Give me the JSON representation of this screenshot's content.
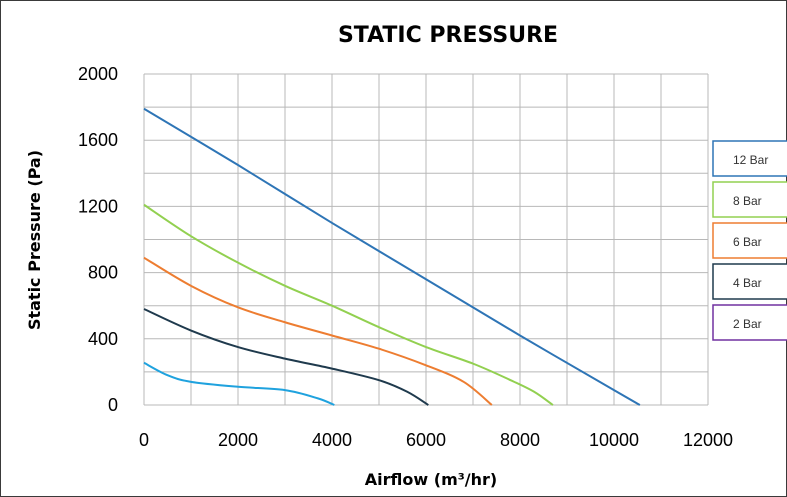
{
  "chart_data": {
    "type": "line",
    "title": "STATIC PRESSURE",
    "xlabel": "Airflow (m³/hr)",
    "ylabel": "Static Pressure (Pa)",
    "xlim": [
      0,
      12000
    ],
    "ylim": [
      0,
      2000
    ],
    "x_ticks": [
      0,
      2000,
      4000,
      6000,
      8000,
      10000,
      12000
    ],
    "y_ticks": [
      0,
      400,
      800,
      1200,
      1600,
      2000
    ],
    "x_tick_labels": [
      "0",
      "2000",
      "4000",
      "6000",
      "8000",
      "10000",
      "12000"
    ],
    "y_tick_labels": [
      "0",
      "400",
      "800",
      "1200",
      "1600",
      "2000"
    ],
    "grid": true,
    "legend_position": "right",
    "series": [
      {
        "name": "12 Bar",
        "color": "#2E75B6",
        "points": [
          [
            0,
            1790
          ],
          [
            2000,
            1450
          ],
          [
            4000,
            1100
          ],
          [
            6000,
            760
          ],
          [
            8000,
            420
          ],
          [
            10000,
            90
          ],
          [
            10550,
            0
          ]
        ]
      },
      {
        "name": "8 Bar",
        "color": "#92D050",
        "points": [
          [
            0,
            1210
          ],
          [
            1000,
            1020
          ],
          [
            2000,
            860
          ],
          [
            3000,
            720
          ],
          [
            4000,
            600
          ],
          [
            5000,
            470
          ],
          [
            6000,
            350
          ],
          [
            7000,
            250
          ],
          [
            7800,
            150
          ],
          [
            8300,
            80
          ],
          [
            8700,
            0
          ]
        ]
      },
      {
        "name": "6 Bar",
        "color": "#ED7D31",
        "points": [
          [
            0,
            890
          ],
          [
            1000,
            720
          ],
          [
            2000,
            590
          ],
          [
            3000,
            500
          ],
          [
            4000,
            420
          ],
          [
            5000,
            340
          ],
          [
            6000,
            240
          ],
          [
            6800,
            140
          ],
          [
            7400,
            0
          ]
        ]
      },
      {
        "name": "4 Bar",
        "color": "#1F3A4D",
        "points": [
          [
            0,
            580
          ],
          [
            1000,
            450
          ],
          [
            2000,
            350
          ],
          [
            3000,
            280
          ],
          [
            4000,
            220
          ],
          [
            5000,
            150
          ],
          [
            5600,
            80
          ],
          [
            6050,
            0
          ]
        ]
      },
      {
        "name": "2 Bar",
        "color": "#7030A0",
        "points": []
      },
      {
        "name": "",
        "color": "#1FA2DE",
        "points": [
          [
            0,
            255
          ],
          [
            500,
            180
          ],
          [
            1000,
            140
          ],
          [
            2000,
            110
          ],
          [
            3000,
            90
          ],
          [
            3700,
            40
          ],
          [
            4050,
            0
          ]
        ]
      }
    ]
  }
}
